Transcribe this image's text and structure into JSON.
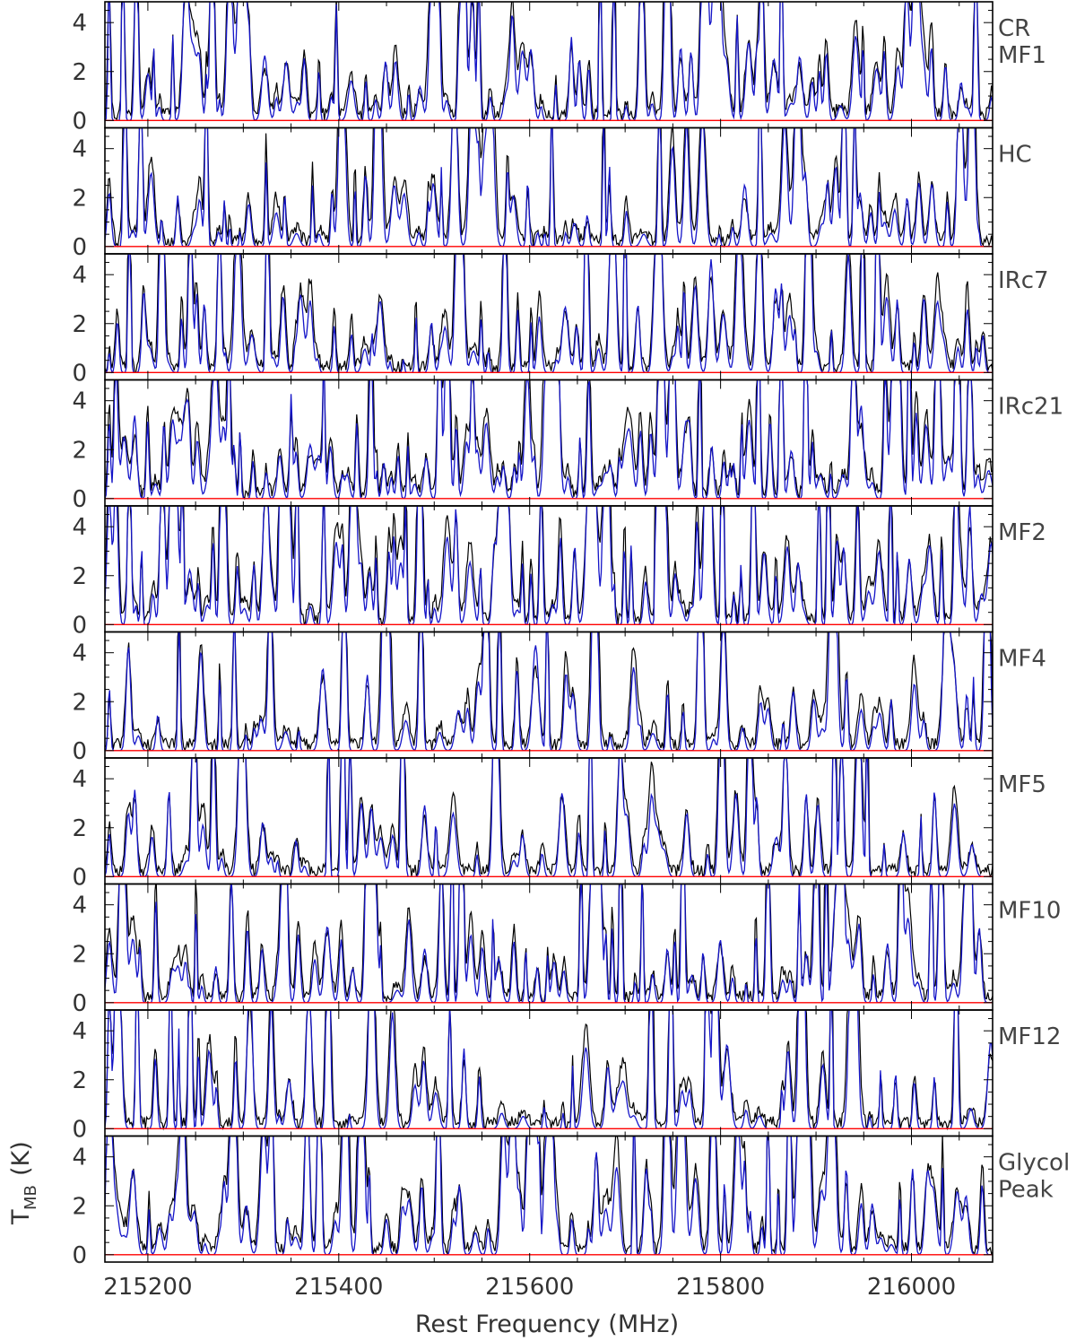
{
  "chart_data": {
    "type": "line",
    "xlabel": "Rest Frequency (MHz)",
    "ylabel_main": "T",
    "ylabel_sub": "MB",
    "ylabel_unit": "(K)",
    "xlim": [
      215155,
      216085
    ],
    "ylim": [
      -0.3,
      4.85
    ],
    "x_ticks": [
      215200,
      215400,
      215600,
      215800,
      216000
    ],
    "x_tick_labels": [
      "215200",
      "215400",
      "215600",
      "215800",
      "216000"
    ],
    "y_ticks": [
      0,
      2,
      4
    ],
    "y_tick_labels": [
      "0",
      "2",
      "4"
    ],
    "series": [
      {
        "color": "#000000"
      },
      {
        "color": "#1515c8"
      }
    ],
    "baseline": {
      "y": 0,
      "color": "#ff0000"
    },
    "panels": [
      {
        "label_lines": [
          "CR",
          "MF1"
        ],
        "density": 1.15,
        "seed": 11
      },
      {
        "label_lines": [
          "HC"
        ],
        "density": 1.0,
        "seed": 23
      },
      {
        "label_lines": [
          "IRc7"
        ],
        "density": 1.05,
        "seed": 37
      },
      {
        "label_lines": [
          "IRc21"
        ],
        "density": 1.25,
        "seed": 41
      },
      {
        "label_lines": [
          "MF2"
        ],
        "density": 1.2,
        "seed": 53
      },
      {
        "label_lines": [
          "MF4"
        ],
        "density": 0.75,
        "seed": 67
      },
      {
        "label_lines": [
          "MF5"
        ],
        "density": 0.75,
        "seed": 71
      },
      {
        "label_lines": [
          "MF10"
        ],
        "density": 1.05,
        "seed": 83
      },
      {
        "label_lines": [
          "MF12"
        ],
        "density": 0.8,
        "seed": 97
      },
      {
        "label_lines": [
          "Glycol",
          "Peak"
        ],
        "density": 1.0,
        "seed": 109
      }
    ]
  }
}
